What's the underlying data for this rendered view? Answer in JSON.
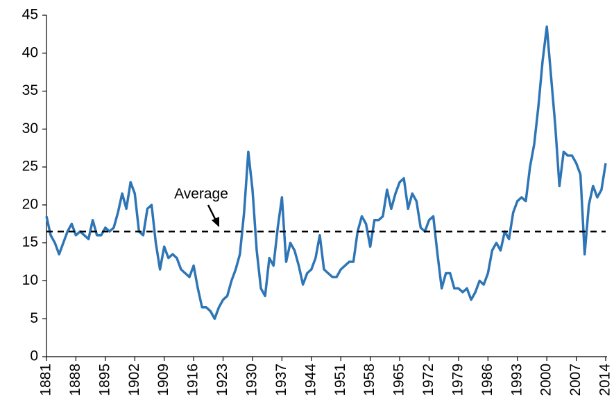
{
  "chart_data": {
    "type": "line",
    "x": [
      1881,
      1882,
      1883,
      1884,
      1885,
      1886,
      1887,
      1888,
      1889,
      1890,
      1891,
      1892,
      1893,
      1894,
      1895,
      1896,
      1897,
      1898,
      1899,
      1900,
      1901,
      1902,
      1903,
      1904,
      1905,
      1906,
      1907,
      1908,
      1909,
      1910,
      1911,
      1912,
      1913,
      1914,
      1915,
      1916,
      1917,
      1918,
      1919,
      1920,
      1921,
      1922,
      1923,
      1924,
      1925,
      1926,
      1927,
      1928,
      1929,
      1930,
      1931,
      1932,
      1933,
      1934,
      1935,
      1936,
      1937,
      1938,
      1939,
      1940,
      1941,
      1942,
      1943,
      1944,
      1945,
      1946,
      1947,
      1948,
      1949,
      1950,
      1951,
      1952,
      1953,
      1954,
      1955,
      1956,
      1957,
      1958,
      1959,
      1960,
      1961,
      1962,
      1963,
      1964,
      1965,
      1966,
      1967,
      1968,
      1969,
      1970,
      1971,
      1972,
      1973,
      1974,
      1975,
      1976,
      1977,
      1978,
      1979,
      1980,
      1981,
      1982,
      1983,
      1984,
      1985,
      1986,
      1987,
      1988,
      1989,
      1990,
      1991,
      1992,
      1993,
      1994,
      1995,
      1996,
      1997,
      1998,
      1999,
      2000,
      2001,
      2002,
      2003,
      2004,
      2005,
      2006,
      2007,
      2008,
      2009,
      2010,
      2011,
      2012,
      2013,
      2014
    ],
    "series": [
      {
        "color": "#2e75b6",
        "values": [
          18.5,
          16,
          15,
          13.5,
          15,
          16.5,
          17.5,
          16,
          16.5,
          16,
          15.5,
          18,
          16,
          16,
          17,
          16.5,
          17,
          19,
          21.5,
          19.5,
          23,
          21.5,
          16.5,
          16,
          19.5,
          20,
          15,
          11.5,
          14.5,
          13,
          13.5,
          13,
          11.5,
          11,
          10.5,
          12,
          9,
          6.5,
          6.5,
          6,
          5,
          6.5,
          7.5,
          8,
          10,
          11.5,
          13.5,
          19,
          27,
          22,
          14,
          9,
          8,
          13,
          12,
          17,
          21,
          12.5,
          15,
          14,
          12,
          9.5,
          11,
          11.5,
          13,
          16,
          11.5,
          11,
          10.5,
          10.5,
          11.5,
          12,
          12.5,
          12.5,
          16.5,
          18.5,
          17.5,
          14.5,
          18,
          18,
          18.5,
          22,
          19.5,
          21.5,
          23,
          23.5,
          19.5,
          21.5,
          20.5,
          17,
          16.5,
          18,
          18.5,
          13.5,
          9,
          11,
          11,
          9,
          9,
          8.5,
          9,
          7.5,
          8.5,
          10,
          9.5,
          11,
          14,
          15,
          14,
          16.5,
          15.5,
          19,
          20.5,
          21,
          20.5,
          25,
          28,
          33,
          39,
          43.5,
          37,
          30.5,
          22.5,
          27,
          26.5,
          26.5,
          25.5,
          24,
          13.5,
          20,
          22.5,
          21,
          22,
          25.5
        ]
      }
    ],
    "reference_line": {
      "value": 16.5,
      "label": "Average",
      "color": "#000000"
    },
    "xlim": [
      1881,
      2014
    ],
    "xticks": [
      1881,
      1888,
      1895,
      1902,
      1909,
      1916,
      1923,
      1930,
      1937,
      1944,
      1951,
      1958,
      1965,
      1972,
      1979,
      1986,
      1993,
      2000,
      2007,
      2014
    ],
    "ylim": [
      0,
      45
    ],
    "yticks": [
      0,
      5,
      10,
      15,
      20,
      25,
      30,
      35,
      40,
      45
    ],
    "grid": false
  }
}
